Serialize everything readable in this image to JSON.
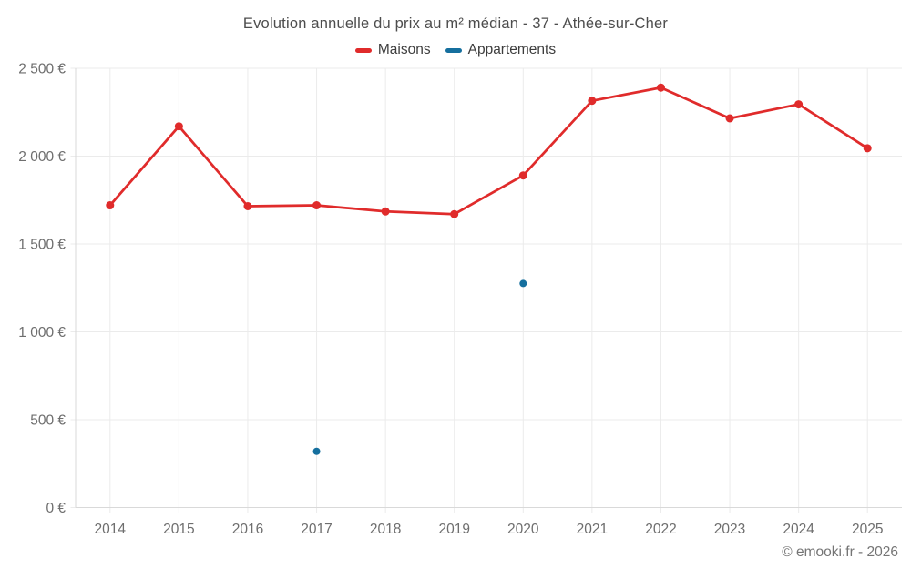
{
  "title": "Evolution annuelle du prix au m² médian - 37 - Athée-sur-Cher",
  "footer": "© emooki.fr - 2026",
  "legend": [
    {
      "label": "Maisons",
      "color": "#e02b2b"
    },
    {
      "label": "Appartements",
      "color": "#156f9e"
    }
  ],
  "colors": {
    "maisons": "#e02b2b",
    "appartements": "#156f9e",
    "gridline": "#ebebeb",
    "axis": "#d9d9d9",
    "tick_label": "#6e6e6e",
    "title_text": "#4d4d4d"
  },
  "chart_data": {
    "type": "line",
    "title": "Evolution annuelle du prix au m² médian - 37 - Athée-sur-Cher",
    "categories": [
      "2014",
      "2015",
      "2016",
      "2017",
      "2018",
      "2019",
      "2020",
      "2021",
      "2022",
      "2023",
      "2024",
      "2025"
    ],
    "series": [
      {
        "name": "Maisons",
        "color": "#e02b2b",
        "style": "line-with-points",
        "values": [
          1720,
          2170,
          1715,
          1720,
          1685,
          1670,
          1890,
          2315,
          2390,
          2215,
          2295,
          2045
        ]
      },
      {
        "name": "Appartements",
        "color": "#156f9e",
        "style": "points-only",
        "values": [
          null,
          null,
          null,
          320,
          null,
          null,
          1275,
          null,
          null,
          null,
          null,
          null
        ]
      }
    ],
    "xlabel": "",
    "ylabel": "",
    "ylim": [
      0,
      2500
    ],
    "yticks": [
      0,
      500,
      1000,
      1500,
      2000,
      2500
    ],
    "ytick_labels": [
      "0 €",
      "500 €",
      "1 000 €",
      "1 500 €",
      "2 000 €",
      "2 500 €"
    ],
    "grid": true,
    "legend_position": "top",
    "unit": "€/m²"
  }
}
